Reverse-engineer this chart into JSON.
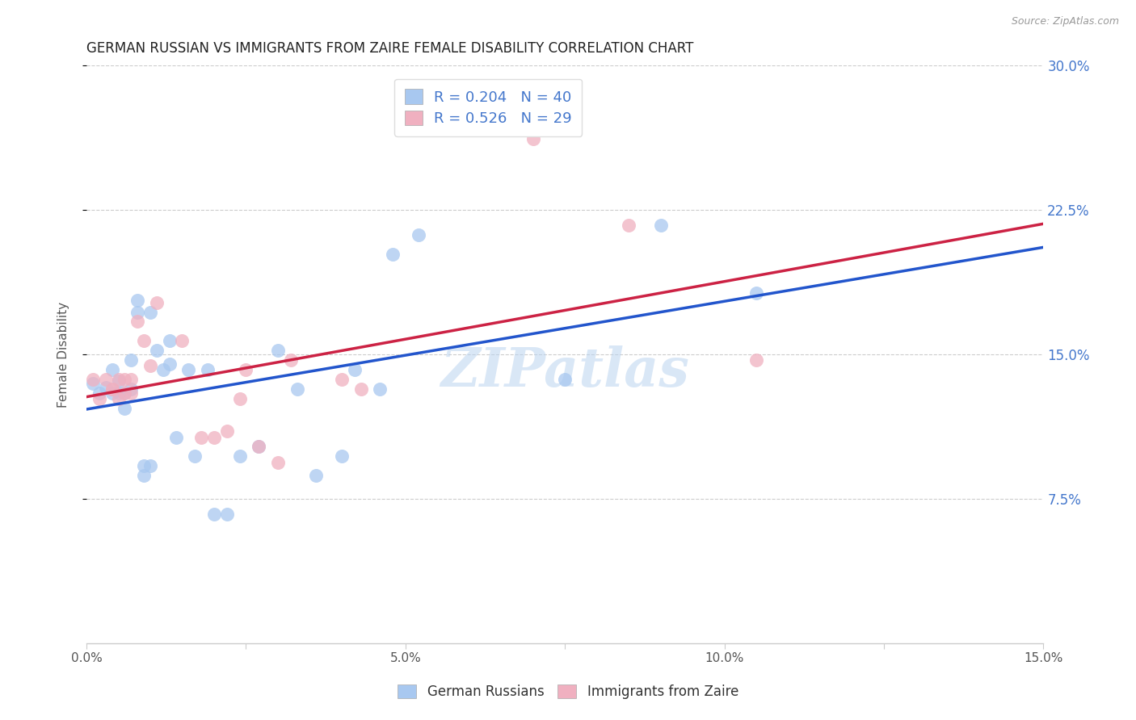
{
  "title": "GERMAN RUSSIAN VS IMMIGRANTS FROM ZAIRE FEMALE DISABILITY CORRELATION CHART",
  "source": "Source: ZipAtlas.com",
  "ylabel": "Female Disability",
  "x_min": 0.0,
  "x_max": 0.15,
  "y_min": 0.0,
  "y_max": 0.3,
  "x_ticks": [
    0.0,
    0.025,
    0.05,
    0.075,
    0.1,
    0.125,
    0.15
  ],
  "x_tick_labels": [
    "0.0%",
    "",
    "5.0%",
    "",
    "10.0%",
    "",
    "15.0%"
  ],
  "y_ticks": [
    0.075,
    0.15,
    0.225,
    0.3
  ],
  "y_tick_labels": [
    "7.5%",
    "15.0%",
    "22.5%",
    "30.0%"
  ],
  "legend_labels": [
    "German Russians",
    "Immigrants from Zaire"
  ],
  "R_blue": 0.204,
  "N_blue": 40,
  "R_pink": 0.526,
  "N_pink": 29,
  "blue_color": "#a8c8f0",
  "pink_color": "#f0b0c0",
  "blue_line_color": "#2255cc",
  "pink_line_color": "#cc2244",
  "label_color": "#4477cc",
  "watermark": "ZIPatlas",
  "blue_x": [
    0.001,
    0.002,
    0.003,
    0.004,
    0.004,
    0.005,
    0.005,
    0.006,
    0.006,
    0.007,
    0.007,
    0.008,
    0.008,
    0.009,
    0.009,
    0.01,
    0.01,
    0.011,
    0.012,
    0.013,
    0.013,
    0.014,
    0.016,
    0.017,
    0.019,
    0.02,
    0.022,
    0.024,
    0.027,
    0.03,
    0.033,
    0.036,
    0.04,
    0.042,
    0.046,
    0.048,
    0.052,
    0.075,
    0.09,
    0.105
  ],
  "blue_y": [
    0.135,
    0.13,
    0.133,
    0.142,
    0.13,
    0.136,
    0.13,
    0.13,
    0.122,
    0.132,
    0.147,
    0.172,
    0.178,
    0.092,
    0.087,
    0.092,
    0.172,
    0.152,
    0.142,
    0.157,
    0.145,
    0.107,
    0.142,
    0.097,
    0.142,
    0.067,
    0.067,
    0.097,
    0.102,
    0.152,
    0.132,
    0.087,
    0.097,
    0.142,
    0.132,
    0.202,
    0.212,
    0.137,
    0.217,
    0.182
  ],
  "pink_x": [
    0.001,
    0.002,
    0.003,
    0.004,
    0.004,
    0.005,
    0.005,
    0.006,
    0.006,
    0.007,
    0.007,
    0.008,
    0.009,
    0.01,
    0.011,
    0.015,
    0.018,
    0.02,
    0.022,
    0.024,
    0.025,
    0.027,
    0.03,
    0.032,
    0.04,
    0.043,
    0.07,
    0.085,
    0.105
  ],
  "pink_y": [
    0.137,
    0.127,
    0.137,
    0.132,
    0.132,
    0.127,
    0.137,
    0.13,
    0.137,
    0.13,
    0.137,
    0.167,
    0.157,
    0.144,
    0.177,
    0.157,
    0.107,
    0.107,
    0.11,
    0.127,
    0.142,
    0.102,
    0.094,
    0.147,
    0.137,
    0.132,
    0.262,
    0.217,
    0.147
  ]
}
